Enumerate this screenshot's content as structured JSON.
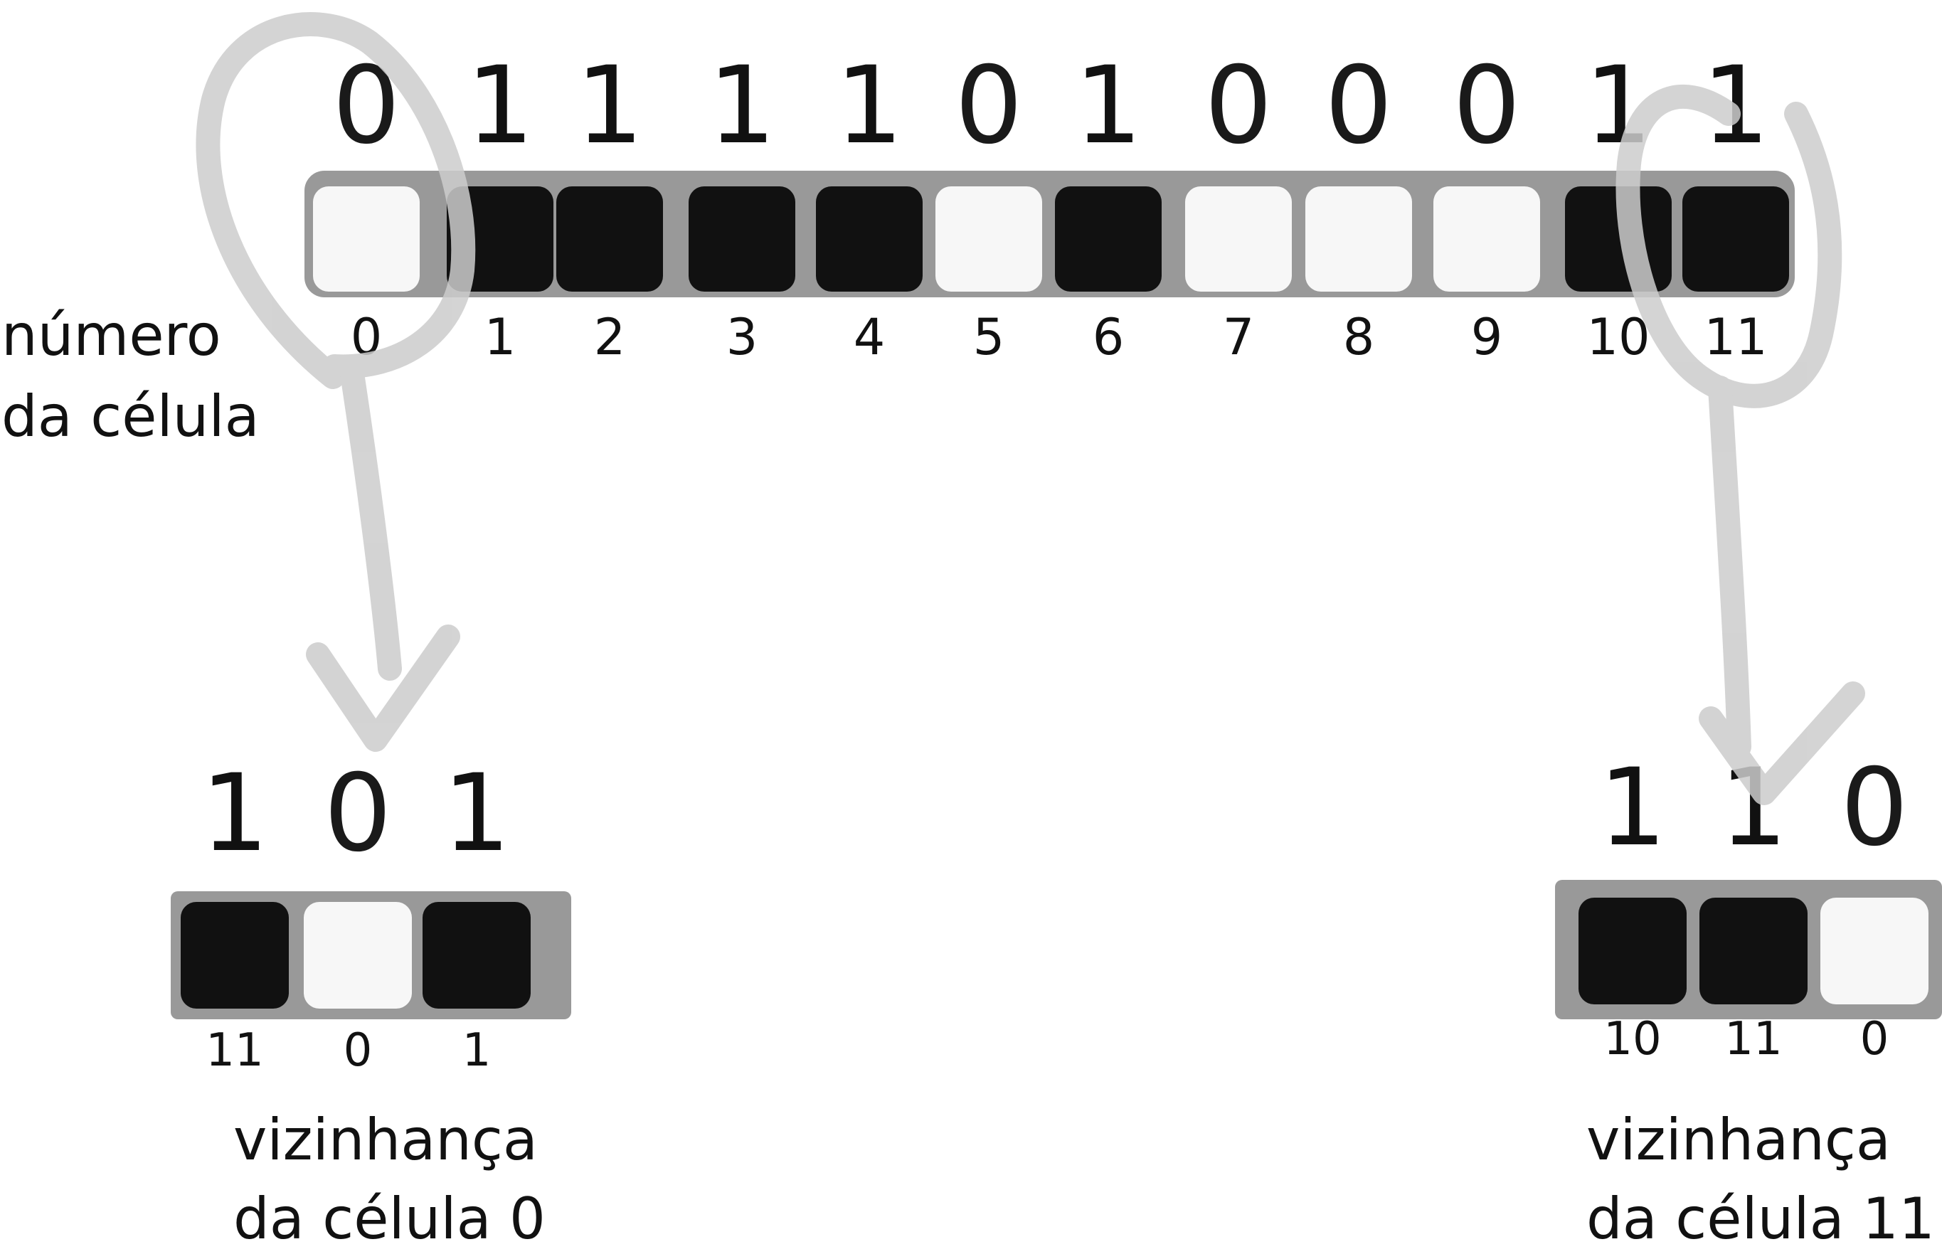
{
  "row": {
    "bits": [
      "0",
      "1",
      "1",
      "1",
      "1",
      "0",
      "1",
      "0",
      "0",
      "0",
      "1",
      "1"
    ],
    "cell_numbers": [
      "0",
      "1",
      "2",
      "3",
      "4",
      "5",
      "6",
      "7",
      "8",
      "9",
      "10",
      "11"
    ],
    "axis_label": {
      "line1": "número",
      "line2": "da célula"
    }
  },
  "left_neighborhood": {
    "bits": [
      "1",
      "0",
      "1"
    ],
    "cell_numbers": [
      "11",
      "0",
      "1"
    ],
    "caption": {
      "line1": "vizinhança",
      "line2": "da célula 0"
    }
  },
  "right_neighborhood": {
    "bits": [
      "1",
      "1",
      "0"
    ],
    "cell_numbers": [
      "10",
      "11",
      "0"
    ],
    "caption": {
      "line1": "vizinhança",
      "line2": "da célula 11"
    }
  },
  "colors": {
    "cell_on": "#111111",
    "cell_off": "#f7f7f7",
    "frame": "#999999",
    "highlight": "#cccccc"
  }
}
